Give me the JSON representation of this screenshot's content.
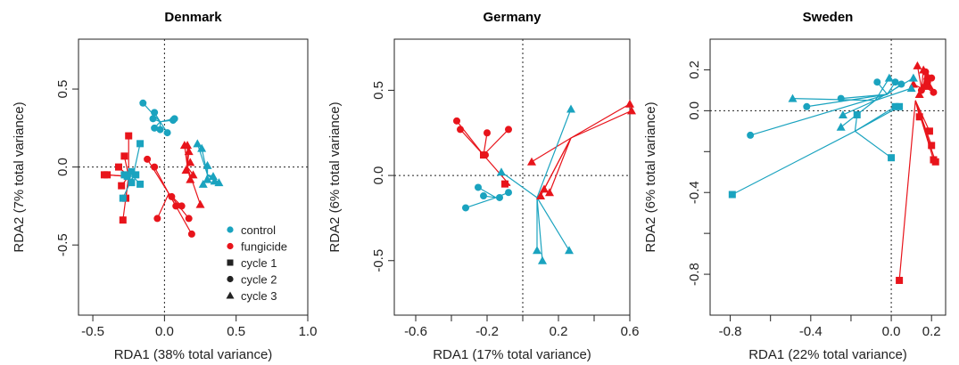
{
  "colors": {
    "control": "#1aa3bf",
    "fungicide": "#e8141b"
  },
  "legend": {
    "treatments": [
      {
        "key": "control",
        "label": "control"
      },
      {
        "key": "fungicide",
        "label": "fungicide"
      }
    ],
    "cycles": [
      {
        "key": "c1",
        "shape": "square",
        "label": "cycle 1"
      },
      {
        "key": "c2",
        "shape": "circle",
        "label": "cycle 2"
      },
      {
        "key": "c3",
        "shape": "triangle",
        "label": "cycle 3"
      }
    ]
  },
  "chart_data": [
    {
      "type": "scatter",
      "title": "Denmark",
      "xlabel": "RDA1 (38% total variance)",
      "ylabel": "RDA2 (7% total variance)",
      "xlim": [
        -0.6,
        1.0
      ],
      "ylim": [
        -0.95,
        0.82
      ],
      "xticks": [
        -0.5,
        0.0,
        0.5,
        1.0
      ],
      "xtick_labels": [
        "-0.5",
        "0.0",
        "0.5",
        "1.0"
      ],
      "yticks": [
        -0.5,
        0.0,
        0.5
      ],
      "ytick_labels": [
        "-0.5",
        "0.0",
        "0.5"
      ],
      "ref_lines": {
        "x": 0,
        "y": 0
      },
      "legend_position": "bottom-right",
      "groups": [
        {
          "treatment": "fungicide",
          "shape": "square",
          "centroid": [
            -0.25,
            -0.06
          ],
          "points": [
            [
              -0.4,
              -0.05
            ],
            [
              -0.42,
              -0.05
            ],
            [
              -0.32,
              0.0
            ],
            [
              -0.25,
              0.2
            ],
            [
              -0.28,
              0.07
            ],
            [
              -0.3,
              -0.12
            ],
            [
              -0.29,
              -0.34
            ],
            [
              -0.27,
              -0.2
            ]
          ]
        },
        {
          "treatment": "control",
          "shape": "square",
          "centroid": [
            -0.22,
            -0.06
          ],
          "points": [
            [
              -0.28,
              -0.05
            ],
            [
              -0.17,
              0.15
            ],
            [
              -0.23,
              -0.03
            ],
            [
              -0.26,
              -0.06
            ],
            [
              -0.23,
              -0.1
            ],
            [
              -0.17,
              -0.11
            ],
            [
              -0.2,
              -0.05
            ],
            [
              -0.29,
              -0.2
            ]
          ]
        },
        {
          "treatment": "control",
          "shape": "circle",
          "centroid": [
            -0.03,
            0.29
          ],
          "points": [
            [
              -0.15,
              0.41
            ],
            [
              -0.07,
              0.35
            ],
            [
              -0.08,
              0.31
            ],
            [
              0.02,
              0.22
            ],
            [
              0.06,
              0.3
            ],
            [
              0.07,
              0.31
            ],
            [
              -0.07,
              0.25
            ],
            [
              -0.03,
              0.24
            ]
          ]
        },
        {
          "treatment": "fungicide",
          "shape": "circle",
          "centroid": [
            0.03,
            -0.17
          ],
          "points": [
            [
              -0.12,
              0.05
            ],
            [
              -0.05,
              -0.33
            ],
            [
              0.05,
              -0.19
            ],
            [
              0.08,
              -0.25
            ],
            [
              0.12,
              -0.25
            ],
            [
              0.17,
              -0.33
            ],
            [
              0.19,
              -0.43
            ],
            [
              -0.07,
              0.0
            ]
          ]
        },
        {
          "treatment": "fungicide",
          "shape": "triangle",
          "centroid": [
            0.16,
            0.0
          ],
          "points": [
            [
              0.14,
              0.14
            ],
            [
              0.16,
              0.14
            ],
            [
              0.18,
              0.03
            ],
            [
              0.15,
              -0.02
            ],
            [
              0.18,
              -0.08
            ],
            [
              0.2,
              -0.05
            ],
            [
              0.25,
              -0.24
            ],
            [
              0.17,
              0.1
            ]
          ]
        },
        {
          "treatment": "control",
          "shape": "triangle",
          "centroid": [
            0.3,
            -0.05
          ],
          "points": [
            [
              0.23,
              0.15
            ],
            [
              0.26,
              0.12
            ],
            [
              0.3,
              0.01
            ],
            [
              0.34,
              -0.06
            ],
            [
              0.35,
              -0.09
            ],
            [
              0.38,
              -0.1
            ],
            [
              0.27,
              -0.11
            ],
            [
              0.3,
              -0.08
            ]
          ]
        }
      ]
    },
    {
      "type": "scatter",
      "title": "Germany",
      "xlabel": "RDA1 (17% total variance)",
      "ylabel": "RDA2 (6% total variance)",
      "xlim": [
        -0.72,
        0.6
      ],
      "ylim": [
        -0.82,
        0.8
      ],
      "xticks": [
        -0.6,
        -0.2,
        0.2,
        0.6
      ],
      "xtick_labels": [
        "-0.6",
        "-0.2",
        "0.2",
        "0.6"
      ],
      "minor_xticks": [
        -0.4,
        0.0,
        0.4
      ],
      "yticks": [
        -0.5,
        0.0,
        0.5
      ],
      "ytick_labels": [
        "-0.5",
        "0.0",
        "0.5"
      ],
      "ref_lines": {
        "x": 0,
        "y": 0
      },
      "groups": [
        {
          "treatment": "fungicide",
          "shape": "circle",
          "centroid": [
            -0.22,
            0.12
          ],
          "points": [
            [
              -0.37,
              0.32
            ],
            [
              -0.35,
              0.27
            ],
            [
              -0.2,
              0.25
            ],
            [
              -0.21,
              0.12
            ],
            [
              -0.22,
              0.12
            ],
            [
              -0.08,
              0.27
            ]
          ]
        },
        {
          "treatment": "fungicide",
          "shape": "square",
          "centroid": [
            -0.07,
            -0.06
          ],
          "points": [
            [
              -0.22,
              0.12
            ],
            [
              -0.1,
              -0.05
            ]
          ]
        },
        {
          "treatment": "control",
          "shape": "circle",
          "centroid": [
            -0.15,
            -0.13
          ],
          "points": [
            [
              -0.32,
              -0.19
            ],
            [
              -0.25,
              -0.07
            ],
            [
              -0.22,
              -0.12
            ],
            [
              -0.13,
              -0.13
            ],
            [
              -0.08,
              -0.1
            ]
          ]
        },
        {
          "treatment": "fungicide",
          "shape": "triangle",
          "centroid": [
            0.27,
            0.22
          ],
          "points": [
            [
              0.05,
              0.08
            ],
            [
              0.6,
              0.42
            ],
            [
              0.61,
              0.38
            ],
            [
              0.12,
              -0.08
            ],
            [
              0.15,
              -0.1
            ],
            [
              0.1,
              -0.12
            ]
          ]
        },
        {
          "treatment": "control",
          "shape": "triangle",
          "centroid": [
            0.08,
            -0.13
          ],
          "points": [
            [
              -0.12,
              0.02
            ],
            [
              0.27,
              0.39
            ],
            [
              0.08,
              -0.44
            ],
            [
              0.11,
              -0.5
            ],
            [
              0.26,
              -0.44
            ]
          ]
        }
      ]
    },
    {
      "type": "scatter",
      "title": "Sweden",
      "xlabel": "RDA1 (22% total variance)",
      "ylabel": "RDA2 (6% total variance)",
      "xlim": [
        -0.9,
        0.27
      ],
      "ylim": [
        -1.0,
        0.35
      ],
      "xticks": [
        -0.8,
        -0.4,
        0.0,
        0.2
      ],
      "xtick_labels": [
        "-0.8",
        "-0.4",
        "0.0",
        "0.2"
      ],
      "minor_xticks": [
        -0.6,
        -0.2
      ],
      "yticks": [
        -0.8,
        -0.4,
        0.0,
        0.2
      ],
      "ytick_labels": [
        "-0.8",
        "-0.4",
        "0.0",
        "0.2"
      ],
      "minor_yticks": [
        -0.6,
        -0.2
      ],
      "ref_lines": {
        "x": 0,
        "y": 0
      },
      "groups": [
        {
          "treatment": "fungicide",
          "shape": "triangle",
          "centroid": [
            0.15,
            0.11
          ],
          "points": [
            [
              0.13,
              0.22
            ],
            [
              0.16,
              0.2
            ],
            [
              0.18,
              0.17
            ],
            [
              0.19,
              0.12
            ],
            [
              0.11,
              0.13
            ],
            [
              0.14,
              0.08
            ]
          ]
        },
        {
          "treatment": "fungicide",
          "shape": "circle",
          "centroid": [
            0.16,
            0.12
          ],
          "points": [
            [
              0.17,
              0.19
            ],
            [
              0.18,
              0.14
            ],
            [
              0.2,
              0.16
            ],
            [
              0.21,
              0.09
            ],
            [
              0.15,
              0.1
            ],
            [
              0.17,
              0.12
            ]
          ]
        },
        {
          "treatment": "fungicide",
          "shape": "square",
          "centroid": [
            0.12,
            0.05
          ],
          "points": [
            [
              0.14,
              -0.03
            ],
            [
              0.19,
              -0.1
            ],
            [
              0.2,
              -0.17
            ],
            [
              0.22,
              -0.25
            ],
            [
              0.21,
              -0.24
            ],
            [
              0.04,
              -0.83
            ]
          ]
        },
        {
          "treatment": "control",
          "shape": "triangle",
          "centroid": [
            -0.08,
            0.05
          ],
          "points": [
            [
              -0.49,
              0.06
            ],
            [
              -0.24,
              -0.02
            ],
            [
              -0.25,
              -0.08
            ],
            [
              -0.01,
              0.16
            ],
            [
              0.11,
              0.16
            ],
            [
              0.1,
              0.11
            ]
          ]
        },
        {
          "treatment": "control",
          "shape": "circle",
          "centroid": [
            -0.02,
            0.08
          ],
          "points": [
            [
              -0.7,
              -0.12
            ],
            [
              -0.42,
              0.02
            ],
            [
              -0.25,
              0.06
            ],
            [
              -0.07,
              0.14
            ],
            [
              0.02,
              0.14
            ],
            [
              0.05,
              0.13
            ]
          ]
        },
        {
          "treatment": "control",
          "shape": "square",
          "centroid": [
            -0.18,
            -0.1
          ],
          "points": [
            [
              -0.79,
              -0.41
            ],
            [
              -0.17,
              -0.02
            ],
            [
              0.0,
              -0.23
            ],
            [
              0.02,
              0.02
            ],
            [
              0.04,
              0.02
            ]
          ]
        }
      ]
    }
  ]
}
